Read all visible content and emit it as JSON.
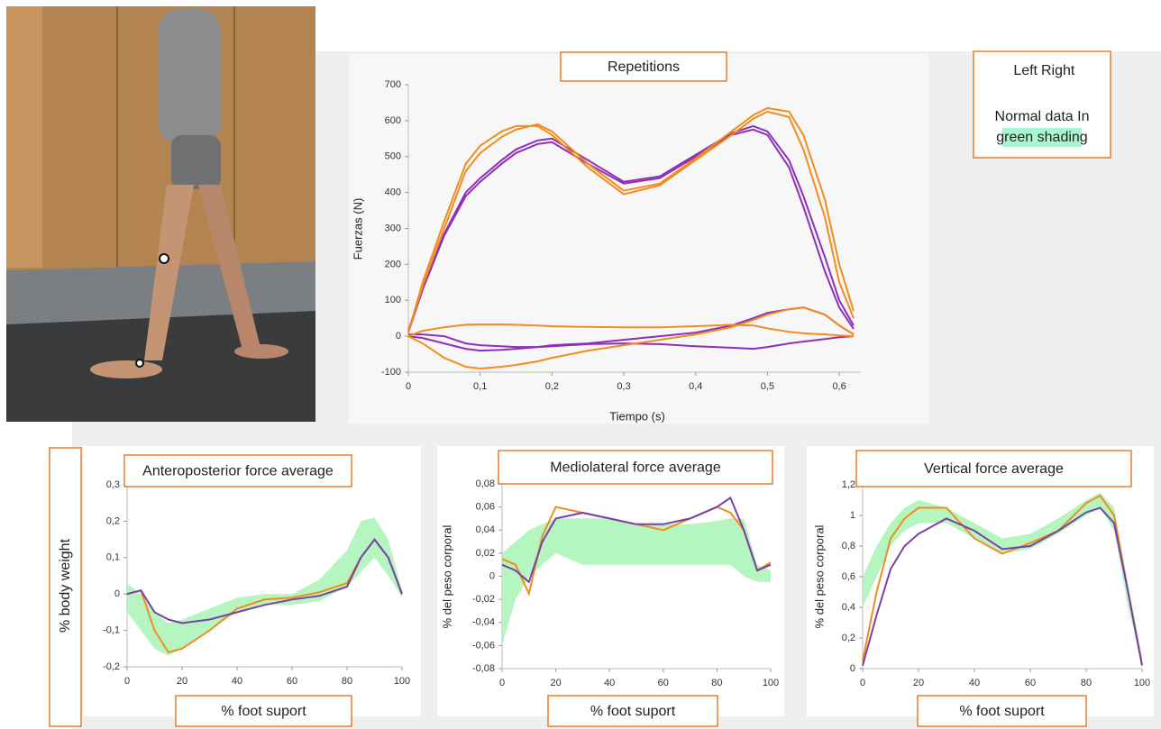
{
  "legend_note": {
    "line1": "Normal data In",
    "line2": "green shading"
  },
  "shared_ylabel": "% body weight",
  "chart_data": [
    {
      "type": "line",
      "title": "Repetitions",
      "xlabel": "Tiempo (s)",
      "ylabel": "Fuerzas (N)",
      "x": [
        0,
        0.02,
        0.05,
        0.08,
        0.1,
        0.13,
        0.15,
        0.18,
        0.2,
        0.25,
        0.3,
        0.35,
        0.4,
        0.45,
        0.48,
        0.5,
        0.53,
        0.55,
        0.58,
        0.6,
        0.62
      ],
      "xlim": [
        0,
        0.63
      ],
      "xticks": [
        0,
        {
          "value": 0.1,
          "label": "0,1"
        },
        {
          "value": 0.2,
          "label": "0,2"
        },
        {
          "value": 0.3,
          "label": "0,3"
        },
        {
          "value": 0.4,
          "label": "0,4"
        },
        {
          "value": 0.5,
          "label": "0,5"
        },
        {
          "value": 0.6,
          "label": "0,6"
        }
      ],
      "ylim": [
        -100,
        700
      ],
      "yticks": [
        -100,
        0,
        100,
        200,
        300,
        400,
        500,
        600,
        700
      ],
      "series": [
        {
          "name": "Left",
          "color": "#8e2fb8",
          "values": [
            10,
            130,
            280,
            390,
            430,
            480,
            510,
            535,
            540,
            480,
            425,
            440,
            500,
            560,
            575,
            560,
            470,
            360,
            180,
            80,
            20
          ]
        },
        {
          "color": "#8e2fb8",
          "values": [
            15,
            135,
            285,
            400,
            440,
            490,
            520,
            545,
            550,
            490,
            430,
            445,
            505,
            565,
            585,
            570,
            490,
            390,
            220,
            100,
            30
          ]
        },
        {
          "color": "#8e2fb8",
          "values": [
            0,
            -5,
            -20,
            -35,
            -40,
            -38,
            -35,
            -30,
            -25,
            -20,
            -10,
            0,
            10,
            30,
            50,
            65,
            75,
            80,
            60,
            30,
            5
          ]
        },
        {
          "color": "#8e2fb8",
          "values": [
            5,
            5,
            0,
            -20,
            -25,
            -28,
            -30,
            -30,
            -28,
            -22,
            -20,
            -22,
            -28,
            -32,
            -35,
            -30,
            -20,
            -15,
            -8,
            -3,
            0
          ]
        },
        {
          "name": "Right",
          "color": "#f28c1e",
          "values": [
            10,
            150,
            320,
            480,
            530,
            570,
            585,
            585,
            560,
            470,
            395,
            420,
            490,
            560,
            605,
            625,
            610,
            520,
            330,
            150,
            50
          ]
        },
        {
          "color": "#f28c1e",
          "values": [
            10,
            140,
            300,
            460,
            510,
            555,
            575,
            590,
            570,
            480,
            405,
            425,
            495,
            570,
            615,
            635,
            625,
            560,
            380,
            200,
            70
          ]
        },
        {
          "color": "#f28c1e",
          "values": [
            0,
            -20,
            -60,
            -85,
            -90,
            -85,
            -80,
            -70,
            -60,
            -40,
            -25,
            -10,
            5,
            25,
            45,
            60,
            75,
            80,
            60,
            30,
            5
          ]
        },
        {
          "color": "#f28c1e",
          "values": [
            0,
            15,
            25,
            32,
            33,
            33,
            32,
            30,
            28,
            26,
            25,
            25,
            28,
            32,
            30,
            22,
            12,
            8,
            5,
            2,
            0
          ]
        }
      ]
    },
    {
      "type": "line",
      "title": "Anteroposterior force average",
      "xlabel": "% foot suport",
      "x": [
        0,
        5,
        10,
        15,
        20,
        30,
        40,
        50,
        60,
        70,
        80,
        85,
        90,
        95,
        100
      ],
      "xlim": [
        0,
        100
      ],
      "xticks": [
        0,
        20,
        40,
        60,
        80,
        100
      ],
      "ylim": [
        -0.2,
        0.3
      ],
      "yticks": [
        {
          "value": -0.2,
          "label": "-0,2"
        },
        {
          "value": -0.1,
          "label": "-0,1"
        },
        0,
        {
          "value": 0.1,
          "label": "0,1"
        },
        {
          "value": 0.2,
          "label": "0,2"
        },
        {
          "value": 0.3,
          "label": "0,3"
        }
      ],
      "band": {
        "color": "#a8f5b5",
        "lower": [
          -0.05,
          -0.1,
          -0.15,
          -0.17,
          -0.15,
          -0.1,
          -0.05,
          -0.03,
          -0.03,
          -0.02,
          0.02,
          0.06,
          0.1,
          0.05,
          -0.01
        ],
        "upper": [
          0.03,
          0.0,
          -0.05,
          -0.08,
          -0.07,
          -0.04,
          -0.01,
          0.0,
          0.0,
          0.04,
          0.12,
          0.2,
          0.21,
          0.15,
          0.01
        ]
      },
      "series": [
        {
          "color": "#f28c1e",
          "values": [
            0,
            0.01,
            -0.1,
            -0.16,
            -0.15,
            -0.1,
            -0.04,
            -0.015,
            -0.01,
            0.005,
            0.03,
            0.1,
            0.15,
            0.1,
            0
          ]
        },
        {
          "color": "#7a3fa8",
          "values": [
            0,
            0.01,
            -0.05,
            -0.07,
            -0.08,
            -0.07,
            -0.05,
            -0.03,
            -0.015,
            -0.005,
            0.02,
            0.1,
            0.15,
            0.1,
            0
          ]
        }
      ]
    },
    {
      "type": "line",
      "title": "Mediolateral force average",
      "xlabel": "% foot suport",
      "ylabel": "% del peso corporal",
      "x": [
        0,
        5,
        10,
        15,
        20,
        30,
        40,
        50,
        60,
        70,
        80,
        85,
        90,
        95,
        100
      ],
      "xlim": [
        0,
        100
      ],
      "xticks": [
        0,
        20,
        40,
        60,
        80,
        100
      ],
      "ylim": [
        -0.08,
        0.08
      ],
      "yticks": [
        {
          "value": -0.08,
          "label": "-0,08"
        },
        {
          "value": -0.06,
          "label": "-0,06"
        },
        {
          "value": -0.04,
          "label": "-0,04"
        },
        {
          "value": -0.02,
          "label": "-0,02"
        },
        0,
        {
          "value": 0.02,
          "label": "0,02"
        },
        {
          "value": 0.04,
          "label": "0,04"
        },
        {
          "value": 0.06,
          "label": "0,06"
        },
        {
          "value": 0.08,
          "label": "0,08"
        }
      ],
      "band": {
        "color": "#a8f5b5",
        "lower": [
          -0.06,
          -0.02,
          0.0,
          0.01,
          0.02,
          0.01,
          0.01,
          0.01,
          0.01,
          0.01,
          0.01,
          0.01,
          0.0,
          -0.005,
          -0.005
        ],
        "upper": [
          0.02,
          0.03,
          0.04,
          0.045,
          0.05,
          0.05,
          0.05,
          0.045,
          0.045,
          0.045,
          0.048,
          0.05,
          0.05,
          0.01,
          0.005
        ]
      },
      "series": [
        {
          "color": "#f28c1e",
          "values": [
            0.015,
            0.01,
            -0.015,
            0.035,
            0.06,
            0.055,
            0.05,
            0.045,
            0.04,
            0.05,
            0.06,
            0.055,
            0.04,
            0.005,
            0.012
          ]
        },
        {
          "color": "#7a3fa8",
          "values": [
            0.01,
            0.005,
            -0.005,
            0.03,
            0.05,
            0.055,
            0.05,
            0.045,
            0.045,
            0.05,
            0.06,
            0.068,
            0.04,
            0.005,
            0.01
          ]
        }
      ]
    },
    {
      "type": "line",
      "title": "Vertical force average",
      "xlabel": "% foot suport",
      "ylabel": "% del peso corporal",
      "x": [
        0,
        5,
        10,
        15,
        20,
        30,
        40,
        50,
        60,
        70,
        80,
        85,
        90,
        95,
        100
      ],
      "xlim": [
        0,
        100
      ],
      "xticks": [
        0,
        20,
        40,
        60,
        80,
        100
      ],
      "ylim": [
        0,
        1.2
      ],
      "yticks": [
        0,
        {
          "value": 0.2,
          "label": "0,2"
        },
        {
          "value": 0.4,
          "label": "0,4"
        },
        {
          "value": 0.6,
          "label": "0,6"
        },
        {
          "value": 0.8,
          "label": "0,8"
        },
        1,
        {
          "value": 1.2,
          "label": "1,2"
        }
      ],
      "band": {
        "color": "#a8f5b5",
        "lower": [
          0.4,
          0.6,
          0.8,
          0.9,
          0.95,
          0.95,
          0.85,
          0.75,
          0.78,
          0.88,
          1.0,
          1.05,
          0.9,
          0.4,
          0.02
        ],
        "upper": [
          0.6,
          0.8,
          0.95,
          1.05,
          1.1,
          1.05,
          0.95,
          0.85,
          0.88,
          0.98,
          1.1,
          1.15,
          1.05,
          0.55,
          0.08
        ]
      },
      "series": [
        {
          "color": "#f28c1e",
          "values": [
            0.05,
            0.5,
            0.85,
            0.98,
            1.05,
            1.05,
            0.85,
            0.75,
            0.82,
            0.9,
            1.08,
            1.13,
            1.0,
            0.5,
            0.02
          ]
        },
        {
          "color": "#7a3fa8",
          "values": [
            0.02,
            0.35,
            0.65,
            0.8,
            0.88,
            0.98,
            0.9,
            0.78,
            0.8,
            0.9,
            1.02,
            1.05,
            0.95,
            0.5,
            0.02
          ]
        }
      ]
    }
  ]
}
